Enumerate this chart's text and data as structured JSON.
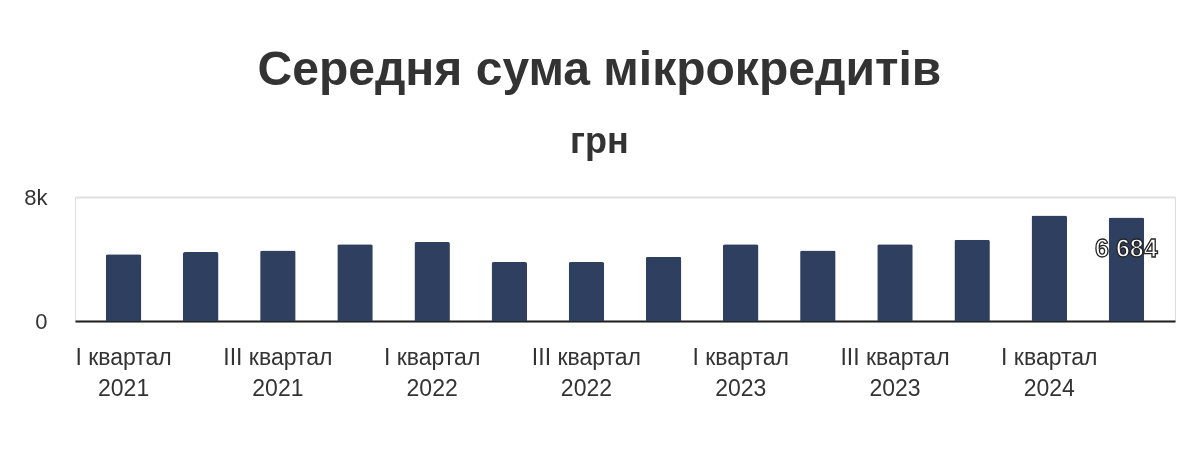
{
  "chart_data": {
    "type": "bar",
    "title": "Середня сума мікрокредитів",
    "subtitle": "грн",
    "categories": [
      "I квартал 2021",
      null,
      "III квартал 2021",
      null,
      "I квартал 2022",
      null,
      "III квартал 2022",
      null,
      "I квартал 2023",
      null,
      "III квартал 2023",
      null,
      "I квартал 2024",
      null
    ],
    "values": [
      4300,
      4450,
      4550,
      4950,
      5100,
      3800,
      3800,
      4150,
      4950,
      4550,
      4950,
      5250,
      6800,
      6684
    ],
    "value_labels": [
      null,
      null,
      null,
      null,
      null,
      null,
      null,
      null,
      null,
      null,
      null,
      null,
      null,
      "6 684"
    ],
    "color": "#2f3f5f",
    "ylim": [
      0,
      8000
    ],
    "yticks": [
      0,
      {
        "value": 8000,
        "label": "8k"
      }
    ],
    "grid": "y",
    "legend": false
  }
}
